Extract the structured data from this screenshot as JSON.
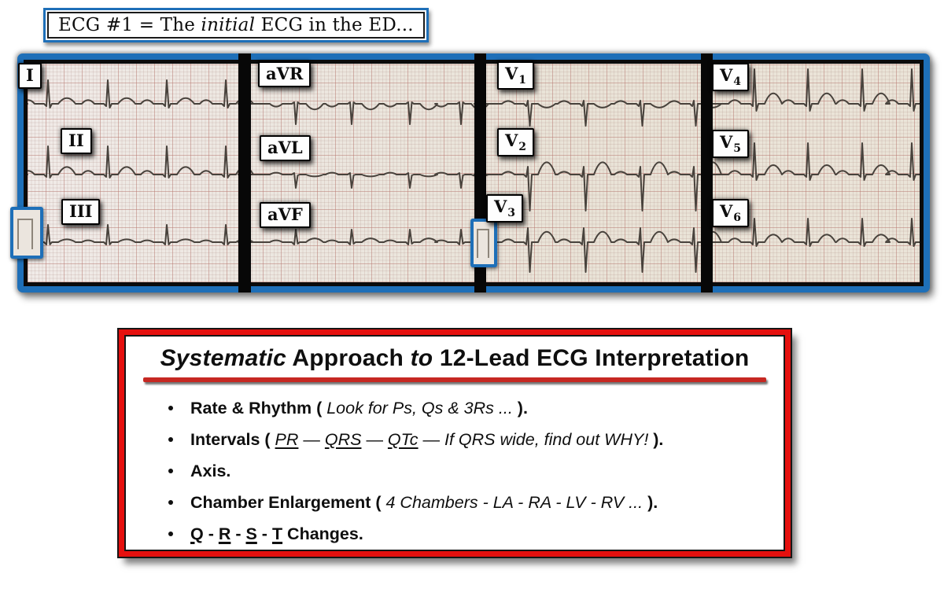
{
  "header": {
    "segments": [
      {
        "t": "ECG #1 = The ",
        "s": "r"
      },
      {
        "t": "initial",
        "s": "i"
      },
      {
        "t": " ECG in the ED...",
        "s": "r"
      }
    ]
  },
  "ecg": {
    "leads": [
      {
        "label": "I",
        "sub": ""
      },
      {
        "label": "II",
        "sub": ""
      },
      {
        "label": "III",
        "sub": ""
      },
      {
        "label": "aVR",
        "sub": ""
      },
      {
        "label": "aVL",
        "sub": ""
      },
      {
        "label": "aVF",
        "sub": ""
      },
      {
        "label": "V",
        "sub": "1"
      },
      {
        "label": "V",
        "sub": "2"
      },
      {
        "label": "V",
        "sub": "3"
      },
      {
        "label": "V",
        "sub": "4"
      },
      {
        "label": "V",
        "sub": "5"
      },
      {
        "label": "V",
        "sub": "6"
      }
    ]
  },
  "approach": {
    "title_segments": [
      {
        "t": "Systematic",
        "s": "i"
      },
      {
        "t": " Approach ",
        "s": "r"
      },
      {
        "t": "to",
        "s": "i"
      },
      {
        "t": " 12-Lead ECG Interpretation",
        "s": "r"
      }
    ],
    "bullets": [
      {
        "segments": [
          {
            "t": "Rate & Rhythm ( ",
            "s": "b"
          },
          {
            "t": "Look for Ps, Qs & 3Rs ... ",
            "s": "i"
          },
          {
            "t": ").",
            "s": "b"
          }
        ]
      },
      {
        "segments": [
          {
            "t": "Intervals ( ",
            "s": "b"
          },
          {
            "t": "PR",
            "s": "iu"
          },
          {
            "t": " — ",
            "s": "r"
          },
          {
            "t": "QRS",
            "s": "iu"
          },
          {
            "t": " — ",
            "s": "r"
          },
          {
            "t": "QTc",
            "s": "iu"
          },
          {
            "t": " — ",
            "s": "r"
          },
          {
            "t": "If QRS wide, find out WHY!",
            "s": "i"
          },
          {
            "t": " ).",
            "s": "b"
          }
        ]
      },
      {
        "segments": [
          {
            "t": "Axis.",
            "s": "b"
          }
        ]
      },
      {
        "segments": [
          {
            "t": "Chamber Enlargement ( ",
            "s": "b"
          },
          {
            "t": "4 Chambers - LA - RA - LV - RV ... ",
            "s": "i"
          },
          {
            "t": ").",
            "s": "b"
          }
        ]
      },
      {
        "segments": [
          {
            "t": "Q",
            "s": "bu"
          },
          {
            "t": " - ",
            "s": "b"
          },
          {
            "t": "R",
            "s": "bu"
          },
          {
            "t": " - ",
            "s": "b"
          },
          {
            "t": "S",
            "s": "bu"
          },
          {
            "t": " - ",
            "s": "b"
          },
          {
            "t": "T",
            "s": "bu"
          },
          {
            "t": " Changes.",
            "s": "b"
          }
        ]
      }
    ]
  },
  "colors": {
    "frame_blue": "#1e6fb8",
    "box_red": "#e5100e",
    "underline_red": "#c62822",
    "trace_gray": "#48423c",
    "paper": "#ebe5de"
  }
}
